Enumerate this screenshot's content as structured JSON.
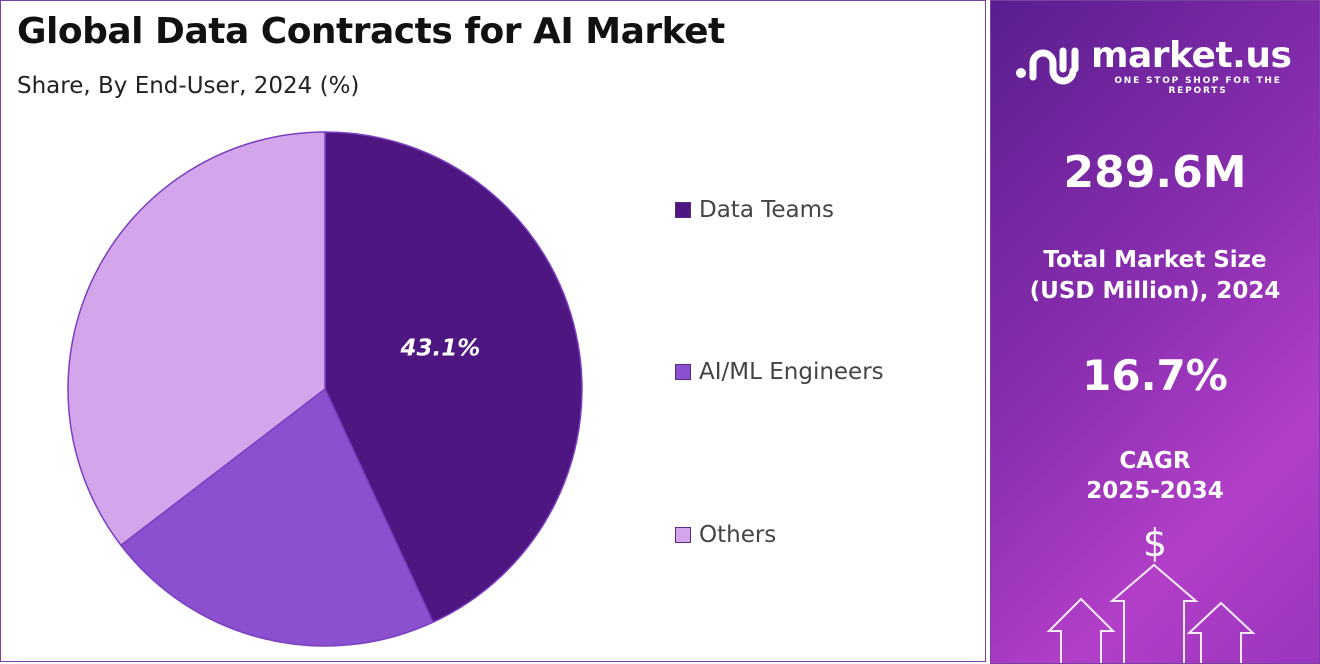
{
  "chart_data": {
    "type": "pie",
    "title": "Global Data Contracts for AI Market",
    "subtitle": "Share, By End-User, 2024 (%)",
    "slices": [
      {
        "name": "Data Teams",
        "value": 43.1,
        "label": "43.1%",
        "color": "#4e1681"
      },
      {
        "name": "AI/ML Engineers",
        "value": 21.5,
        "label": "",
        "color": "#8a50cf"
      },
      {
        "name": "Others",
        "value": 35.4,
        "label": "",
        "color": "#d3a5ea"
      }
    ],
    "legend_position": "right"
  },
  "sidebar": {
    "logo_name": "market.us",
    "logo_tagline": "ONE STOP SHOP FOR THE REPORTS",
    "market_size": "289.6M",
    "market_size_label_1": "Total Market Size",
    "market_size_label_2": "(USD Million), 2024",
    "cagr": "16.7%",
    "cagr_label_1": "CAGR",
    "cagr_label_2": "2025-2034",
    "currency_symbol": "$"
  }
}
